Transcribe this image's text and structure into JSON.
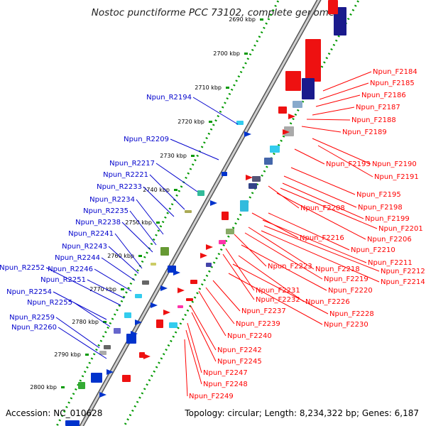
{
  "title": "Nostoc punctiforme PCC 73102, complete genome",
  "footer": {
    "accession": "Accession: NC_010628",
    "summary": "Topology: circular; Length: 8,234,322 bp; Genes: 6,187"
  },
  "colors": {
    "forward_label": "#ff0000",
    "reverse_label": "#0000cc",
    "backbone": "#999999",
    "ruler_dots": "#009900"
  },
  "ruler_ticks": [
    "2690 kbp",
    "2700 kbp",
    "2710 kbp",
    "2720 kbp",
    "2730 kbp",
    "2740 kbp",
    "2750 kbp",
    "2760 kbp",
    "2770 kbp",
    "2780 kbp",
    "2790 kbp",
    "2800 kbp"
  ],
  "reverse_genes": [
    "Npun_R2194",
    "Npun_R2209",
    "Npun_R2217",
    "Npun_R2221",
    "Npun_R2233",
    "Npun_R2234",
    "Npun_R2235",
    "Npun_R2238",
    "Npun_R2241",
    "Npun_R2243",
    "Npun_R2244",
    "Npun_R2246",
    "Npun_R2252",
    "Npun_R2251",
    "Npun_R2254",
    "Npun_R2255",
    "Npun_R2259",
    "Npun_R2260"
  ],
  "forward_genes": [
    "Npun_F2184",
    "Npun_F2185",
    "Npun_F2186",
    "Npun_F2187",
    "Npun_F2188",
    "Npun_F2189",
    "Npun_F2190",
    "Npun_F2193",
    "Npun_F2191",
    "Npun_F2195",
    "Npun_F2208",
    "Npun_F2198",
    "Npun_F2199",
    "Npun_F2201",
    "Npun_F2206",
    "Npun_F2216",
    "Npun_F2210",
    "Npun_F2211",
    "Npun_F2223",
    "Npun_F2218",
    "Npun_F2212",
    "Npun_F2219",
    "Npun_F2214",
    "Npun_F2220",
    "Npun_F2231",
    "Npun_F2232",
    "Npun_F2226",
    "Npun_F2237",
    "Npun_F2228",
    "Npun_F2239",
    "Npun_F2230",
    "Npun_F2240",
    "Npun_F2242",
    "Npun_F2245",
    "Npun_F2247",
    "Npun_F2248",
    "Npun_F2249"
  ]
}
